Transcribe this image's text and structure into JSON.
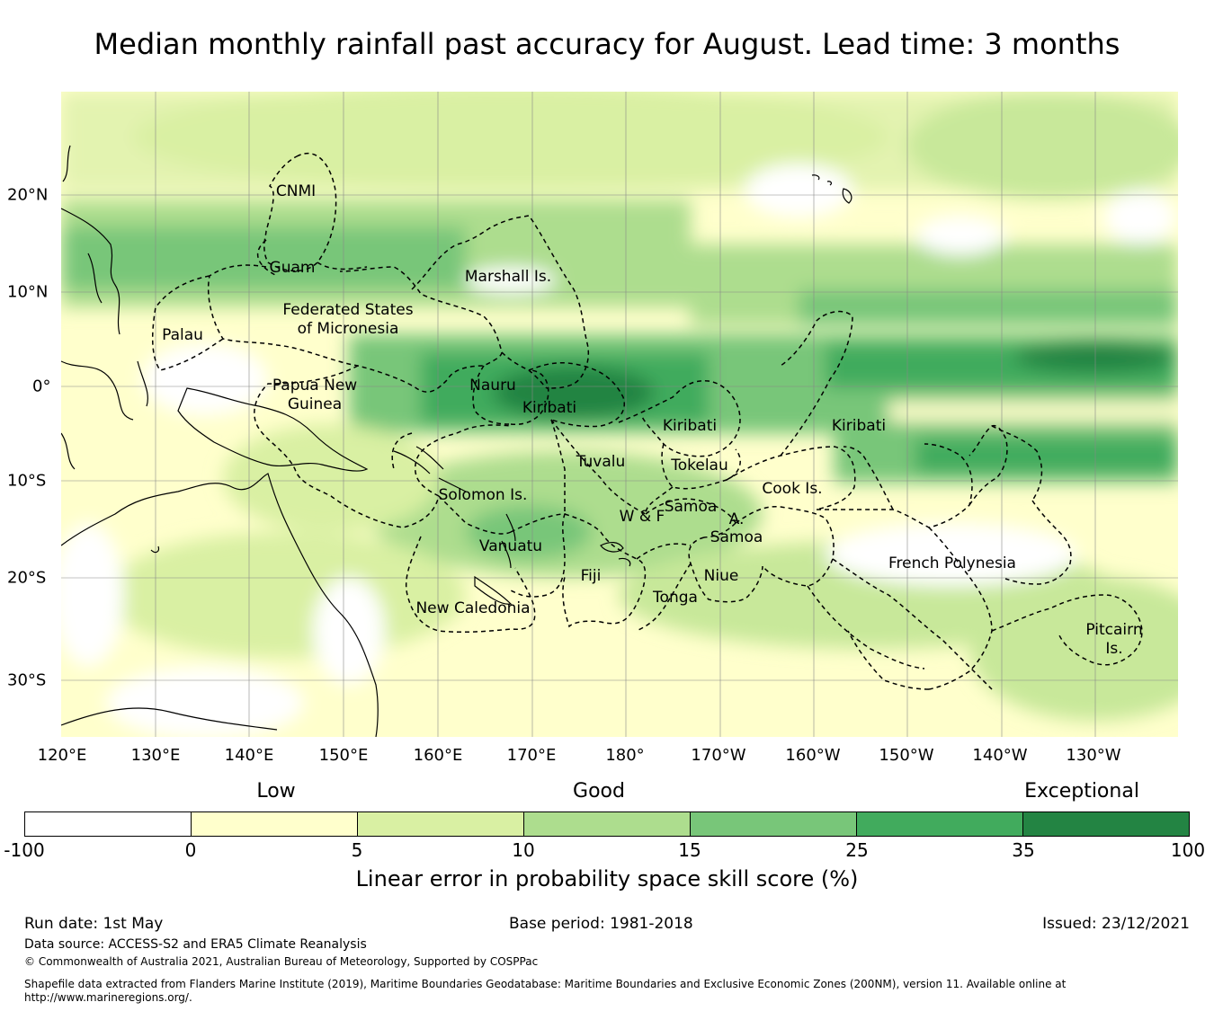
{
  "title": "Median monthly rainfall past accuracy for August. Lead time: 3 months",
  "map": {
    "longitude_labels": [
      "120°E",
      "130°E",
      "140°E",
      "150°E",
      "160°E",
      "170°E",
      "180°",
      "170°W",
      "160°W",
      "150°W",
      "140°W",
      "130°W"
    ],
    "latitude_labels": [
      "20°N",
      "10°N",
      "0°",
      "10°S",
      "20°S",
      "30°S"
    ],
    "region_labels": {
      "cnmi": "CNMI",
      "guam": "Guam",
      "marshall": "Marshall Is.",
      "fsm_1": "Federated States",
      "fsm_2": "of Micronesia",
      "palau": "Palau",
      "png_1": "Papua New",
      "png_2": "Guinea",
      "nauru": "Nauru",
      "kiribati_w": "Kiribati",
      "kiribati_c": "Kiribati",
      "kiribati_e": "Kiribati",
      "tuvalu": "Tuvalu",
      "tokelau": "Tokelau",
      "solomon": "Solomon Is.",
      "samoa": "Samoa",
      "wf": "W & F",
      "asamoa_1": "A.",
      "asamoa_2": "Samoa",
      "cook": "Cook Is.",
      "vanuatu": "Vanuatu",
      "fiji": "Fiji",
      "niue": "Niue",
      "tonga": "Tonga",
      "new_caledonia": "New Caledonia",
      "french_polynesia": "French Polynesia",
      "pitcairn_1": "Pitcairn",
      "pitcairn_2": "Is."
    }
  },
  "legend": {
    "categories": [
      "Low",
      "Good",
      "Exceptional"
    ],
    "ticks": [
      "-100",
      "0",
      "5",
      "10",
      "15",
      "25",
      "35",
      "100"
    ],
    "colors": [
      "#ffffff",
      "#ffffcc",
      "#d9f0a3",
      "#addd8e",
      "#78c679",
      "#41ab5d",
      "#238443"
    ],
    "label": "Linear error in probability space skill score (%)"
  },
  "footer": {
    "run_date": "Run date: 1st May",
    "base_period": "Base period: 1981-2018",
    "issued": "Issued: 23/12/2021",
    "data_source": "Data source: ACCESS-S2 and ERA5 Climate Reanalysis",
    "copyright": "© Commonwealth of Australia 2021, Australian Bureau of Meteorology, Supported by COSPPac",
    "shapefile_1": "Shapefile data extracted from Flanders Marine Institute (2019), Maritime Boundaries Geodatabase: Maritime Boundaries and Exclusive Economic Zones (200NM), version 11. Available online at",
    "shapefile_2": "http://www.marineregions.org/."
  }
}
